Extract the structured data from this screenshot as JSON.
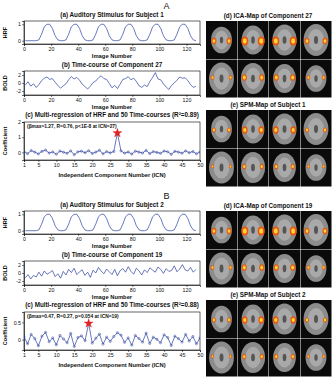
{
  "chart_data": [
    {
      "type": "line",
      "title": "(a) Auditory Stimulus for Subject 1",
      "x_label": "Image Number",
      "y_label": "HRF",
      "color": "#2b3f9e",
      "grid": false,
      "x": [
        1,
        3,
        5,
        7,
        9,
        11,
        13,
        15,
        17,
        19,
        21,
        23,
        25,
        27,
        29,
        31,
        33,
        35,
        37,
        39,
        41,
        43,
        45,
        47,
        49,
        51,
        53,
        55,
        57,
        59,
        61,
        63,
        65,
        67,
        69,
        71,
        73,
        75,
        77,
        79,
        81,
        83,
        85,
        87,
        89,
        91,
        93,
        95,
        97,
        99,
        101,
        103,
        105,
        107,
        109,
        111,
        113,
        115,
        117,
        119,
        121,
        123,
        125,
        127
      ],
      "values": [
        0,
        0,
        0,
        0,
        0,
        0.05,
        0.4,
        0.85,
        1,
        1,
        0.75,
        0.3,
        0.05,
        0,
        0,
        0.05,
        0.4,
        0.85,
        1,
        1,
        0.75,
        0.3,
        0.05,
        0,
        0,
        0.05,
        0.4,
        0.85,
        1,
        1,
        0.75,
        0.3,
        0.05,
        0,
        0,
        0.05,
        0.4,
        0.85,
        1,
        1,
        0.75,
        0.3,
        0.05,
        0,
        0,
        0.05,
        0.4,
        0.85,
        1,
        1,
        0.75,
        0.3,
        0.05,
        0,
        0,
        0.05,
        0.4,
        0.85,
        1,
        1,
        0.75,
        0.3,
        0.05,
        0
      ],
      "xlim": [
        0,
        130
      ],
      "xticks": [
        0,
        20,
        40,
        60,
        80,
        100,
        120
      ],
      "ylim": [
        -0.2,
        1.2
      ],
      "yticks": [
        0,
        1
      ]
    },
    {
      "type": "line",
      "title": "(b) Time-course of Component 27",
      "x_label": "Image Number",
      "y_label": "BOLD",
      "color": "#2b3f9e",
      "grid": false,
      "x": [
        1,
        3,
        5,
        7,
        9,
        11,
        13,
        15,
        17,
        19,
        21,
        23,
        25,
        27,
        29,
        31,
        33,
        35,
        37,
        39,
        41,
        43,
        45,
        47,
        49,
        51,
        53,
        55,
        57,
        59,
        61,
        63,
        65,
        67,
        69,
        71,
        73,
        75,
        77,
        79,
        81,
        83,
        85,
        87,
        89,
        91,
        93,
        95,
        97,
        99,
        101,
        103,
        105,
        107,
        109,
        111,
        113,
        115,
        117,
        119,
        121,
        123,
        125,
        127
      ],
      "values": [
        -0.5,
        0.3,
        -0.8,
        -0.2,
        -1.1,
        -0.4,
        0.6,
        1.2,
        1.5,
        0.9,
        1.1,
        0.2,
        -0.6,
        -1.3,
        -0.7,
        -0.2,
        0.8,
        1.6,
        1.0,
        1.4,
        0.7,
        -0.3,
        -0.9,
        -1.5,
        -0.8,
        0.1,
        0.5,
        1.3,
        1.8,
        1.1,
        0.9,
        -0.1,
        -1.2,
        -0.6,
        -1.4,
        -0.3,
        0.9,
        1.1,
        1.6,
        0.8,
        1.2,
        0.4,
        -0.7,
        -1.1,
        -0.5,
        -0.9,
        0.4,
        1.4,
        2.6,
        1.0,
        0.8,
        -0.2,
        -1.0,
        -1.6,
        -0.6,
        0.0,
        0.7,
        1.5,
        1.2,
        1.3,
        0.6,
        -0.4,
        -1.1,
        -0.8
      ],
      "xlim": [
        0,
        130
      ],
      "xticks": [
        0,
        20,
        40,
        60,
        80,
        100,
        120
      ],
      "ylim": [
        -3,
        3
      ],
      "yticks": [
        -2,
        0,
        2
      ]
    },
    {
      "type": "line",
      "title": "(c) Multi-regression of HRF and 50 Time-courses (R²=0.89)",
      "x_label": "Independent Component Number (ICN)",
      "y_label": "Coefficient",
      "color": "#2b3f9e",
      "marker": "circle",
      "grid": false,
      "annotation": "(βmax=1.27, R=0.76, p<1E-8 at ICN=27)",
      "highlight": {
        "x": 27,
        "color": "#e02020",
        "marker": "star"
      },
      "x": [
        1,
        2,
        3,
        4,
        5,
        6,
        7,
        8,
        9,
        10,
        11,
        12,
        13,
        14,
        15,
        16,
        17,
        18,
        19,
        20,
        21,
        22,
        23,
        24,
        25,
        26,
        27,
        28,
        29,
        30,
        31,
        32,
        33,
        34,
        35,
        36,
        37,
        38,
        39,
        40,
        41,
        42,
        43,
        44,
        45,
        46,
        47,
        48,
        49,
        50
      ],
      "values": [
        0.05,
        -0.08,
        0.12,
        0.02,
        -0.1,
        0.07,
        0.15,
        -0.04,
        0.03,
        -0.12,
        0.09,
        0.01,
        -0.06,
        0.1,
        -0.15,
        0.04,
        0.08,
        -0.02,
        0.11,
        -0.07,
        0.02,
        0.14,
        -0.09,
        0.05,
        -0.03,
        0.06,
        1.27,
        0.1,
        -0.05,
        0.03,
        -0.11,
        0.08,
        0.02,
        -0.04,
        0.13,
        -0.08,
        0.05,
        0.0,
        -0.06,
        0.09,
        0.04,
        -0.13,
        0.07,
        0.02,
        -0.05,
        0.1,
        -0.02,
        0.06,
        -0.09,
        0.03
      ],
      "xlim": [
        1,
        50
      ],
      "xticks": [
        1,
        5,
        10,
        15,
        20,
        25,
        30,
        35,
        40,
        45,
        50
      ],
      "ylim": [
        -0.5,
        2
      ],
      "yticks": [
        0,
        1,
        2
      ]
    },
    {
      "type": "line",
      "title": "(a) Auditory Stimulus for Subject 2",
      "x_label": "Image Number",
      "y_label": "HRF",
      "color": "#2b3f9e",
      "grid": false,
      "x": [
        1,
        3,
        5,
        7,
        9,
        11,
        13,
        15,
        17,
        19,
        21,
        23,
        25,
        27,
        29,
        31,
        33,
        35,
        37,
        39,
        41,
        43,
        45,
        47,
        49,
        51,
        53,
        55,
        57,
        59,
        61,
        63,
        65,
        67,
        69,
        71,
        73,
        75,
        77,
        79,
        81,
        83,
        85,
        87,
        89,
        91,
        93,
        95,
        97,
        99,
        101,
        103,
        105,
        107,
        109,
        111,
        113,
        115,
        117,
        119,
        121,
        123,
        125,
        127
      ],
      "values": [
        0,
        0,
        0,
        0,
        0,
        0.05,
        0.4,
        0.85,
        1,
        1,
        0.75,
        0.3,
        0.05,
        0,
        0,
        0.05,
        0.4,
        0.85,
        1,
        1,
        0.75,
        0.3,
        0.05,
        0,
        0,
        0.05,
        0.4,
        0.85,
        1,
        1,
        0.75,
        0.3,
        0.05,
        0,
        0,
        0.05,
        0.4,
        0.85,
        1,
        1,
        0.75,
        0.3,
        0.05,
        0,
        0,
        0.05,
        0.4,
        0.85,
        1,
        1,
        0.75,
        0.3,
        0.05,
        0,
        0,
        0.05,
        0.4,
        0.85,
        1,
        1,
        0.75,
        0.3,
        0.05,
        0
      ],
      "xlim": [
        0,
        130
      ],
      "xticks": [
        0,
        20,
        40,
        60,
        80,
        100,
        120
      ],
      "ylim": [
        -0.2,
        1.2
      ],
      "yticks": [
        0,
        1
      ]
    },
    {
      "type": "line",
      "title": "(b) Time-course of Component 19",
      "x_label": "Image Number",
      "y_label": "BOLD",
      "color": "#2b3f9e",
      "grid": false,
      "x": [
        1,
        3,
        5,
        7,
        9,
        11,
        13,
        15,
        17,
        19,
        21,
        23,
        25,
        27,
        29,
        31,
        33,
        35,
        37,
        39,
        41,
        43,
        45,
        47,
        49,
        51,
        53,
        55,
        57,
        59,
        61,
        63,
        65,
        67,
        69,
        71,
        73,
        75,
        77,
        79,
        81,
        83,
        85,
        87,
        89,
        91,
        93,
        95,
        97,
        99,
        101,
        103,
        105,
        107,
        109,
        111,
        113,
        115,
        117,
        119,
        121,
        123,
        125,
        127
      ],
      "values": [
        -1.2,
        -0.4,
        -1.5,
        -0.6,
        -1.0,
        0.2,
        -0.8,
        0.5,
        -0.3,
        0.1,
        0.6,
        -0.9,
        -0.2,
        -1.3,
        0.4,
        -0.5,
        0.9,
        0.1,
        1.2,
        -0.4,
        0.3,
        0.8,
        -0.6,
        0.2,
        -1.1,
        0.7,
        0.0,
        1.4,
        0.5,
        -0.2,
        1.0,
        0.3,
        -0.4,
        0.9,
        -0.7,
        0.6,
        1.1,
        0.2,
        1.6,
        0.4,
        -0.3,
        1.2,
        0.5,
        -0.5,
        0.8,
        0.1,
        1.3,
        0.7,
        0.2,
        1.5,
        0.9,
        -0.1,
        1.1,
        0.4,
        0.6,
        1.8,
        0.3,
        1.0,
        2.1,
        0.8,
        0.5,
        1.4,
        0.2,
        0.9
      ],
      "xlim": [
        0,
        130
      ],
      "xticks": [
        0,
        20,
        40,
        60,
        80,
        100,
        120
      ],
      "ylim": [
        -3,
        3
      ],
      "yticks": [
        -2,
        0,
        2
      ]
    },
    {
      "type": "line",
      "title": "(c) Multi-regression of HRF and 50 Time-courses (R²=0.88)",
      "x_label": "Independent Component Number (ICN)",
      "y_label": "Coefficient",
      "color": "#2b3f9e",
      "marker": "circle",
      "grid": false,
      "annotation": "(βmax=0.47, R=0.27, p=0.054 at ICN=19)",
      "highlight": {
        "x": 19,
        "color": "#e02020",
        "marker": "star"
      },
      "x": [
        1,
        2,
        3,
        4,
        5,
        6,
        7,
        8,
        9,
        10,
        11,
        12,
        13,
        14,
        15,
        16,
        17,
        18,
        19,
        20,
        21,
        22,
        23,
        24,
        25,
        26,
        27,
        28,
        29,
        30,
        31,
        32,
        33,
        34,
        35,
        36,
        37,
        38,
        39,
        40,
        41,
        42,
        43,
        44,
        45,
        46,
        47,
        48,
        49,
        50
      ],
      "values": [
        0.08,
        -0.12,
        0.15,
        0.03,
        -0.18,
        0.1,
        0.21,
        -0.06,
        0.05,
        -0.15,
        0.12,
        0.02,
        -0.09,
        0.18,
        -0.2,
        0.06,
        0.11,
        -0.03,
        0.47,
        -0.1,
        0.04,
        0.16,
        -0.13,
        0.07,
        -0.05,
        0.09,
        0.2,
        0.13,
        -0.08,
        0.05,
        -0.16,
        0.12,
        0.03,
        -0.07,
        0.19,
        -0.11,
        0.07,
        0.01,
        -0.09,
        0.14,
        0.06,
        -0.17,
        0.1,
        0.03,
        -0.07,
        0.15,
        -0.04,
        0.09,
        -0.12,
        0.05
      ],
      "xlim": [
        1,
        50
      ],
      "xticks": [
        1,
        5,
        10,
        15,
        20,
        25,
        30,
        35,
        40,
        45,
        50
      ],
      "ylim": [
        -0.3,
        0.8
      ],
      "yticks": [
        0,
        0.5
      ]
    }
  ],
  "panels": [
    {
      "label": "A",
      "maps": [
        "(d) ICA-Map of Component 27",
        "(e) SPM-Map of Subject 1"
      ]
    },
    {
      "label": "B",
      "maps": [
        "(d) ICA-Map of Component 19",
        "(e) SPM-Map of Subject 2"
      ]
    }
  ]
}
